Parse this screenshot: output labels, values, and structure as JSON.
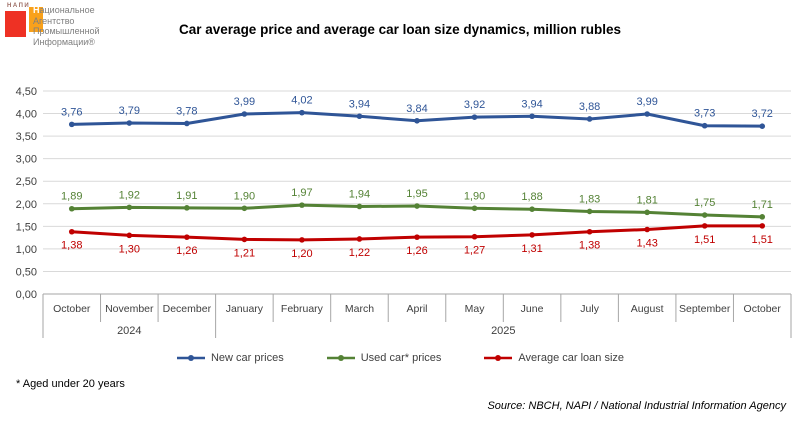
{
  "logo": {
    "mark_text": "НАПИ",
    "line1_first": "Н",
    "line1_rest": "ациональное",
    "line2": "Агентство",
    "line3": "Промышленной",
    "line4": "Информации®",
    "red": "#ee3124",
    "orange": "#f9a11b"
  },
  "title": "Car average price and average car loan size dynamics, million rubles",
  "chart_data": {
    "type": "line",
    "categories": [
      "October",
      "November",
      "December",
      "January",
      "February",
      "March",
      "April",
      "May",
      "June",
      "July",
      "August",
      "September",
      "October"
    ],
    "year_groups": [
      {
        "label": "2024",
        "start": 0,
        "end": 3
      },
      {
        "label": "2025",
        "start": 3,
        "end": 13
      }
    ],
    "series": [
      {
        "name": "New car prices",
        "color": "#2F5597",
        "label_position": "above",
        "values": [
          3.76,
          3.79,
          3.78,
          3.99,
          4.02,
          3.94,
          3.84,
          3.92,
          3.94,
          3.88,
          3.99,
          3.73,
          3.72
        ]
      },
      {
        "name": "Used car* prices",
        "color": "#548235",
        "label_position": "above",
        "values": [
          1.89,
          1.92,
          1.91,
          1.9,
          1.97,
          1.94,
          1.95,
          1.9,
          1.88,
          1.83,
          1.81,
          1.75,
          1.71
        ]
      },
      {
        "name": "Average car loan size",
        "color": "#C00000",
        "label_position": "below",
        "values": [
          1.38,
          1.3,
          1.26,
          1.21,
          1.2,
          1.22,
          1.26,
          1.27,
          1.31,
          1.38,
          1.43,
          1.51,
          1.51
        ]
      }
    ],
    "ylim": [
      0,
      4.5
    ],
    "ytick_step": 0.5,
    "decimal_separator": ",",
    "grid": true,
    "legend_position": "bottom",
    "colors": {
      "grid": "#d9d9d9",
      "axis": "#a6a6a6",
      "axis_text": "#404040"
    }
  },
  "footnote": "* Aged under 20 years",
  "source": "Source: NBCH, NAPI / National Industrial Information Agency"
}
